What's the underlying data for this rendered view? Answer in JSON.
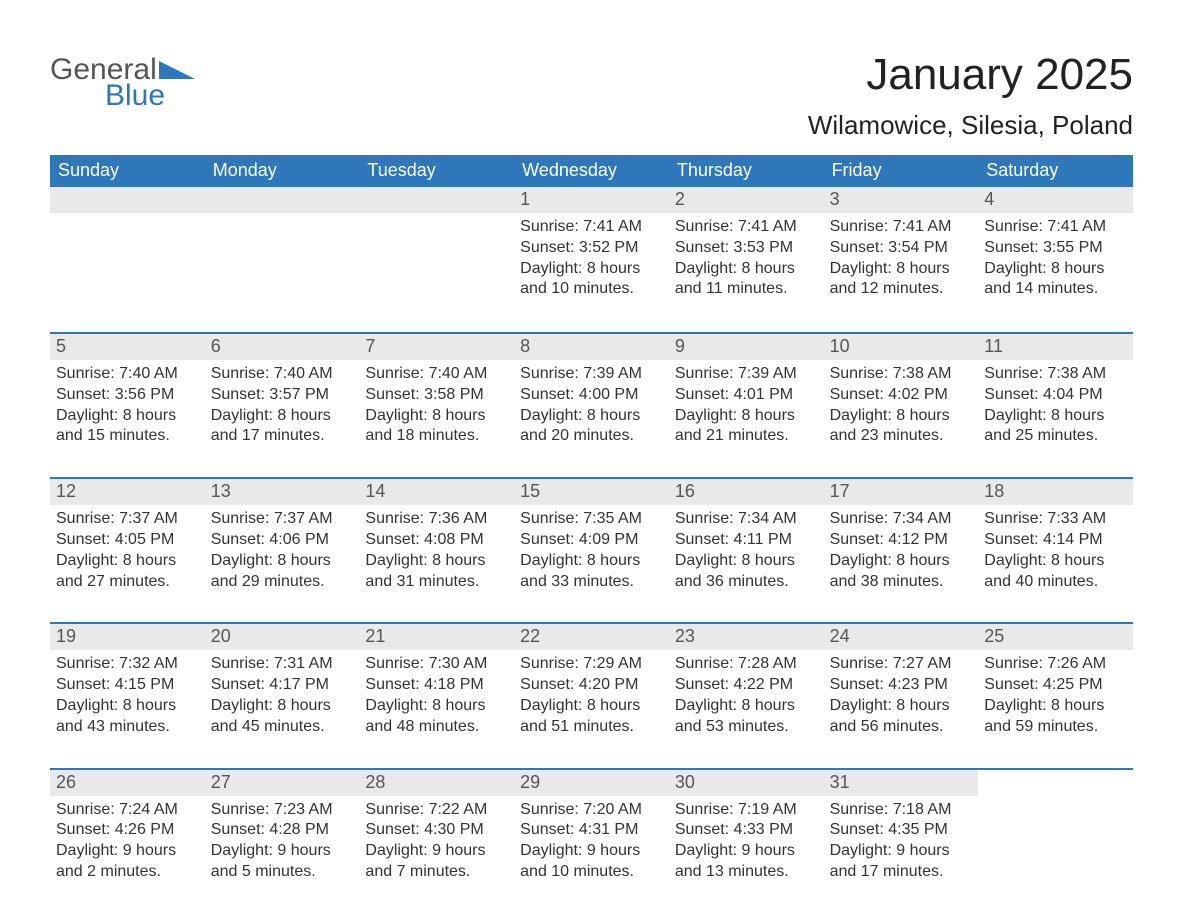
{
  "logo": {
    "text_general": "General",
    "text_blue": "Blue"
  },
  "title": {
    "month_year": "January 2025",
    "location": "Wilamowice, Silesia, Poland"
  },
  "colors": {
    "header_bg": "#2f77bb",
    "header_text": "#ffffff",
    "daynum_bg": "#e9e9e9",
    "daynum_text": "#555555",
    "body_text": "#333333",
    "row_border": "#2f77bb",
    "page_bg": "#ffffff"
  },
  "weekdays": [
    "Sunday",
    "Monday",
    "Tuesday",
    "Wednesday",
    "Thursday",
    "Friday",
    "Saturday"
  ],
  "layout": {
    "first_weekday_index": 3,
    "rows": 5,
    "cols": 7,
    "aspect_width": 1188,
    "aspect_height": 918
  },
  "days": [
    {
      "n": "1",
      "sunrise": "Sunrise: 7:41 AM",
      "sunset": "Sunset: 3:52 PM",
      "daylight": "Daylight: 8 hours and 10 minutes."
    },
    {
      "n": "2",
      "sunrise": "Sunrise: 7:41 AM",
      "sunset": "Sunset: 3:53 PM",
      "daylight": "Daylight: 8 hours and 11 minutes."
    },
    {
      "n": "3",
      "sunrise": "Sunrise: 7:41 AM",
      "sunset": "Sunset: 3:54 PM",
      "daylight": "Daylight: 8 hours and 12 minutes."
    },
    {
      "n": "4",
      "sunrise": "Sunrise: 7:41 AM",
      "sunset": "Sunset: 3:55 PM",
      "daylight": "Daylight: 8 hours and 14 minutes."
    },
    {
      "n": "5",
      "sunrise": "Sunrise: 7:40 AM",
      "sunset": "Sunset: 3:56 PM",
      "daylight": "Daylight: 8 hours and 15 minutes."
    },
    {
      "n": "6",
      "sunrise": "Sunrise: 7:40 AM",
      "sunset": "Sunset: 3:57 PM",
      "daylight": "Daylight: 8 hours and 17 minutes."
    },
    {
      "n": "7",
      "sunrise": "Sunrise: 7:40 AM",
      "sunset": "Sunset: 3:58 PM",
      "daylight": "Daylight: 8 hours and 18 minutes."
    },
    {
      "n": "8",
      "sunrise": "Sunrise: 7:39 AM",
      "sunset": "Sunset: 4:00 PM",
      "daylight": "Daylight: 8 hours and 20 minutes."
    },
    {
      "n": "9",
      "sunrise": "Sunrise: 7:39 AM",
      "sunset": "Sunset: 4:01 PM",
      "daylight": "Daylight: 8 hours and 21 minutes."
    },
    {
      "n": "10",
      "sunrise": "Sunrise: 7:38 AM",
      "sunset": "Sunset: 4:02 PM",
      "daylight": "Daylight: 8 hours and 23 minutes."
    },
    {
      "n": "11",
      "sunrise": "Sunrise: 7:38 AM",
      "sunset": "Sunset: 4:04 PM",
      "daylight": "Daylight: 8 hours and 25 minutes."
    },
    {
      "n": "12",
      "sunrise": "Sunrise: 7:37 AM",
      "sunset": "Sunset: 4:05 PM",
      "daylight": "Daylight: 8 hours and 27 minutes."
    },
    {
      "n": "13",
      "sunrise": "Sunrise: 7:37 AM",
      "sunset": "Sunset: 4:06 PM",
      "daylight": "Daylight: 8 hours and 29 minutes."
    },
    {
      "n": "14",
      "sunrise": "Sunrise: 7:36 AM",
      "sunset": "Sunset: 4:08 PM",
      "daylight": "Daylight: 8 hours and 31 minutes."
    },
    {
      "n": "15",
      "sunrise": "Sunrise: 7:35 AM",
      "sunset": "Sunset: 4:09 PM",
      "daylight": "Daylight: 8 hours and 33 minutes."
    },
    {
      "n": "16",
      "sunrise": "Sunrise: 7:34 AM",
      "sunset": "Sunset: 4:11 PM",
      "daylight": "Daylight: 8 hours and 36 minutes."
    },
    {
      "n": "17",
      "sunrise": "Sunrise: 7:34 AM",
      "sunset": "Sunset: 4:12 PM",
      "daylight": "Daylight: 8 hours and 38 minutes."
    },
    {
      "n": "18",
      "sunrise": "Sunrise: 7:33 AM",
      "sunset": "Sunset: 4:14 PM",
      "daylight": "Daylight: 8 hours and 40 minutes."
    },
    {
      "n": "19",
      "sunrise": "Sunrise: 7:32 AM",
      "sunset": "Sunset: 4:15 PM",
      "daylight": "Daylight: 8 hours and 43 minutes."
    },
    {
      "n": "20",
      "sunrise": "Sunrise: 7:31 AM",
      "sunset": "Sunset: 4:17 PM",
      "daylight": "Daylight: 8 hours and 45 minutes."
    },
    {
      "n": "21",
      "sunrise": "Sunrise: 7:30 AM",
      "sunset": "Sunset: 4:18 PM",
      "daylight": "Daylight: 8 hours and 48 minutes."
    },
    {
      "n": "22",
      "sunrise": "Sunrise: 7:29 AM",
      "sunset": "Sunset: 4:20 PM",
      "daylight": "Daylight: 8 hours and 51 minutes."
    },
    {
      "n": "23",
      "sunrise": "Sunrise: 7:28 AM",
      "sunset": "Sunset: 4:22 PM",
      "daylight": "Daylight: 8 hours and 53 minutes."
    },
    {
      "n": "24",
      "sunrise": "Sunrise: 7:27 AM",
      "sunset": "Sunset: 4:23 PM",
      "daylight": "Daylight: 8 hours and 56 minutes."
    },
    {
      "n": "25",
      "sunrise": "Sunrise: 7:26 AM",
      "sunset": "Sunset: 4:25 PM",
      "daylight": "Daylight: 8 hours and 59 minutes."
    },
    {
      "n": "26",
      "sunrise": "Sunrise: 7:24 AM",
      "sunset": "Sunset: 4:26 PM",
      "daylight": "Daylight: 9 hours and 2 minutes."
    },
    {
      "n": "27",
      "sunrise": "Sunrise: 7:23 AM",
      "sunset": "Sunset: 4:28 PM",
      "daylight": "Daylight: 9 hours and 5 minutes."
    },
    {
      "n": "28",
      "sunrise": "Sunrise: 7:22 AM",
      "sunset": "Sunset: 4:30 PM",
      "daylight": "Daylight: 9 hours and 7 minutes."
    },
    {
      "n": "29",
      "sunrise": "Sunrise: 7:20 AM",
      "sunset": "Sunset: 4:31 PM",
      "daylight": "Daylight: 9 hours and 10 minutes."
    },
    {
      "n": "30",
      "sunrise": "Sunrise: 7:19 AM",
      "sunset": "Sunset: 4:33 PM",
      "daylight": "Daylight: 9 hours and 13 minutes."
    },
    {
      "n": "31",
      "sunrise": "Sunrise: 7:18 AM",
      "sunset": "Sunset: 4:35 PM",
      "daylight": "Daylight: 9 hours and 17 minutes."
    }
  ]
}
